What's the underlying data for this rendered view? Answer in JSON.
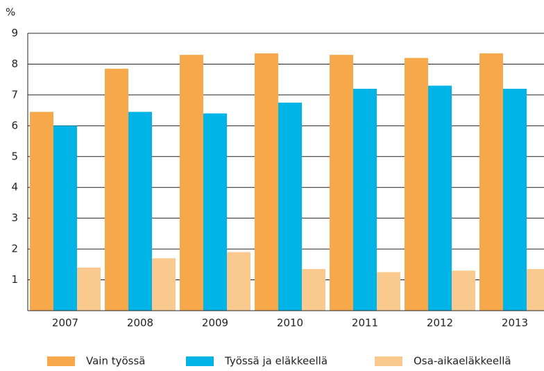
{
  "chart_data": {
    "type": "bar",
    "y_label": "%",
    "categories": [
      "2007",
      "2008",
      "2009",
      "2010",
      "2011",
      "2012",
      "2013"
    ],
    "series": [
      {
        "name": "Vain työssä",
        "color": "#f7a84a",
        "values": [
          6.45,
          7.85,
          8.3,
          8.35,
          8.3,
          8.2,
          8.35
        ]
      },
      {
        "name": "Työssä ja eläkkeellä",
        "color": "#00b4e8",
        "values": [
          6.0,
          6.45,
          6.4,
          6.75,
          7.2,
          7.3,
          7.2
        ]
      },
      {
        "name": "Osa-aikaeläkkeellä",
        "color": "#f9c98e",
        "values": [
          1.4,
          1.7,
          1.9,
          1.35,
          1.25,
          1.3,
          1.35
        ]
      }
    ],
    "ylim": [
      0,
      9
    ],
    "yticks": [
      1,
      2,
      3,
      4,
      5,
      6,
      7,
      8,
      9
    ],
    "grid": true
  }
}
